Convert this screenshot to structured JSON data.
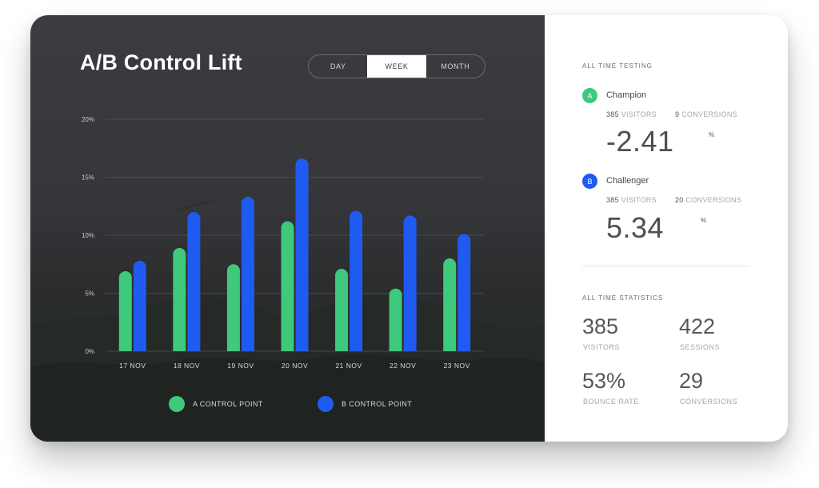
{
  "title": "A/B Control Lift",
  "range_tabs": [
    "DAY",
    "WEEK",
    "MONTH"
  ],
  "active_tab": "WEEK",
  "chart_data": {
    "type": "bar",
    "categories": [
      "17 NOV",
      "18 NOV",
      "19 NOV",
      "20 NOV",
      "21 NOV",
      "22 NOV",
      "23 NOV"
    ],
    "series": [
      {
        "name": "A CONTROL POINT",
        "color": "#3ec97c",
        "values": [
          6.9,
          8.9,
          7.5,
          11.2,
          7.1,
          5.4,
          8.0
        ]
      },
      {
        "name": "B CONTROL POINT",
        "color": "#1f5bf0",
        "values": [
          7.8,
          12.0,
          13.3,
          16.6,
          12.1,
          11.7,
          10.1
        ]
      }
    ],
    "y_ticks": [
      "0%",
      "5%",
      "10%",
      "15%",
      "20%"
    ],
    "ylim": [
      0,
      20
    ],
    "grid": true,
    "legend_position": "bottom"
  },
  "testing": {
    "label": "ALL TIME TESTING",
    "champion": {
      "badge": "A",
      "name": "Champion",
      "color": "#3ec97c",
      "visitors": "385",
      "visitors_label": "VISITORS",
      "conversions": "9",
      "conversions_label": "CONVERSIONS",
      "value": "-2.41",
      "unit": "%"
    },
    "challenger": {
      "badge": "B",
      "name": "Challenger",
      "color": "#1f5bf0",
      "visitors": "385",
      "visitors_label": "VISITORS",
      "conversions": "20",
      "conversions_label": "CONVERSIONS",
      "value": "5.34",
      "unit": "%"
    }
  },
  "statistics": {
    "label": "ALL TIME STATISTICS",
    "items": [
      {
        "value": "385",
        "label": "VISITORS"
      },
      {
        "value": "422",
        "label": "SESSIONS"
      },
      {
        "value": "53%",
        "label": "BOUNCE RATE"
      },
      {
        "value": "29",
        "label": "CONVERSIONS"
      }
    ]
  }
}
